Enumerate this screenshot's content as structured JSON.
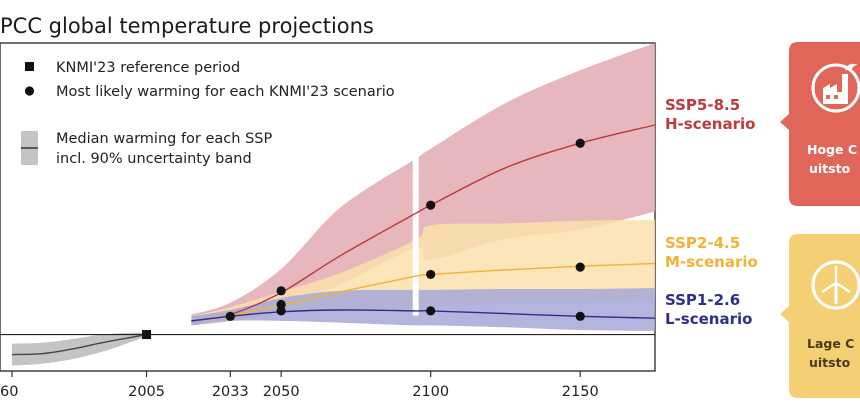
{
  "colors": {
    "ssp585": "#c0393b",
    "ssp585_band": "#e2aab0",
    "ssp245": "#f2b233",
    "ssp245_band": "#fae0ad",
    "ssp126": "#2e2e8c",
    "ssp126_band": "#a6a8d8",
    "history": "#444444",
    "history_band": "#c4c4c4",
    "card_h": "#e0665a",
    "card_l": "#f5cf73"
  },
  "side_cards": {
    "h_text_line1": "Hoge C",
    "h_text_line2": "uitsto",
    "h_icon": "factory-icon",
    "l_text_line1": "Lage C",
    "l_text_line2": "uitsto",
    "l_icon": "wind-turbine-icon"
  },
  "chart_data": {
    "type": "line",
    "title": "PCC global temperature projections",
    "xlabel": "",
    "ylabel": "",
    "x_ticks": [
      "60",
      "2005",
      "2033",
      "2050",
      "2100",
      "2150"
    ],
    "x_tick_values": [
      1960,
      2005,
      2033,
      2050,
      2100,
      2150
    ],
    "xlim": [
      1956,
      2175
    ],
    "ylim": [
      -0.4,
      3.2
    ],
    "break_gap": [
      2094,
      2096
    ],
    "legend": {
      "position": "top-left",
      "reference": "KNMI'23 reference period",
      "most_likely": "Most likely warming for each KNMI'23 scenario",
      "median_line1": "Median warming for each SSP",
      "median_line2": "incl. 90% uncertainty band"
    },
    "history": {
      "x": [
        1960,
        1970,
        1980,
        1990,
        2000,
        2005
      ],
      "median": [
        -0.22,
        -0.21,
        -0.16,
        -0.09,
        -0.03,
        0.0
      ],
      "lower": [
        -0.34,
        -0.32,
        -0.27,
        -0.19,
        -0.08,
        -0.02
      ],
      "upper": [
        -0.1,
        -0.09,
        -0.05,
        0.0,
        0.02,
        0.02
      ]
    },
    "reference_point": {
      "x": 2005,
      "y": 0.0
    },
    "series": [
      {
        "name": "SSP5-8.5",
        "label_line2": "H-scenario",
        "x": [
          2020,
          2033,
          2050,
          2070,
          2095,
          2100,
          2125,
          2150,
          2175
        ],
        "median": [
          0.15,
          0.22,
          0.46,
          0.87,
          1.33,
          1.42,
          1.83,
          2.1,
          2.3
        ],
        "lower": [
          0.1,
          0.15,
          0.3,
          0.55,
          0.95,
          0.82,
          1.05,
          1.15,
          1.35
        ],
        "upper": [
          0.22,
          0.35,
          0.72,
          1.4,
          1.93,
          2.04,
          2.54,
          2.9,
          3.2
        ],
        "points": [
          {
            "x": 2050,
            "y": 0.48
          },
          {
            "x": 2100,
            "y": 1.42
          },
          {
            "x": 2150,
            "y": 2.1
          }
        ]
      },
      {
        "name": "SSP2-4.5",
        "label_line2": "M-scenario",
        "x": [
          2020,
          2033,
          2050,
          2070,
          2095,
          2100,
          2125,
          2150,
          2175
        ],
        "median": [
          0.15,
          0.21,
          0.32,
          0.47,
          0.64,
          0.66,
          0.71,
          0.75,
          0.78
        ],
        "lower": [
          0.1,
          0.15,
          0.22,
          0.26,
          0.3,
          0.3,
          0.34,
          0.35,
          0.37
        ],
        "upper": [
          0.2,
          0.3,
          0.47,
          0.68,
          1.04,
          1.2,
          1.22,
          1.25,
          1.26
        ],
        "points": [
          {
            "x": 2050,
            "y": 0.33
          },
          {
            "x": 2100,
            "y": 0.66
          },
          {
            "x": 2150,
            "y": 0.74
          }
        ]
      },
      {
        "name": "SSP1-2.6",
        "label_line2": "L-scenario",
        "x": [
          2020,
          2033,
          2050,
          2070,
          2095,
          2100,
          2125,
          2150,
          2175
        ],
        "median": [
          0.15,
          0.2,
          0.25,
          0.27,
          0.26,
          0.26,
          0.23,
          0.2,
          0.18
        ],
        "lower": [
          0.1,
          0.15,
          0.15,
          0.13,
          0.1,
          0.1,
          0.08,
          0.05,
          0.04
        ],
        "upper": [
          0.2,
          0.27,
          0.4,
          0.48,
          0.49,
          0.49,
          0.5,
          0.5,
          0.51
        ],
        "points": [
          {
            "x": 2033,
            "y": 0.2
          },
          {
            "x": 2050,
            "y": 0.26
          },
          {
            "x": 2100,
            "y": 0.26
          },
          {
            "x": 2150,
            "y": 0.2
          }
        ]
      }
    ]
  }
}
